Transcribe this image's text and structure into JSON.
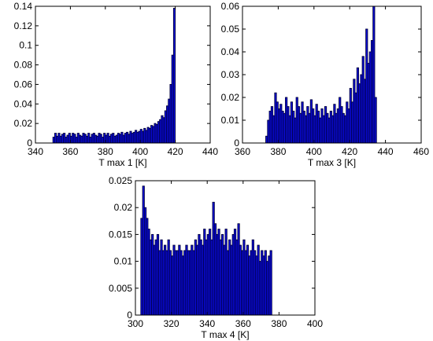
{
  "colors": {
    "bar_fill": "#0a0ae6",
    "bar_edge": "#00003a",
    "axis": "#000000",
    "background": "#ffffff"
  },
  "chart_data": [
    {
      "type": "bar",
      "title": "",
      "xlabel": "T max 1 [K]",
      "ylabel": "",
      "xlim": [
        340,
        440
      ],
      "ylim": [
        0,
        0.14
      ],
      "xticks": [
        340,
        360,
        380,
        400,
        420,
        440
      ],
      "yticks": [
        0,
        0.02,
        0.04,
        0.06,
        0.08,
        0.1,
        0.12,
        0.14
      ],
      "ytick_labels": [
        "0",
        "0.02",
        "0.04",
        "0.06",
        "0.08",
        "0.1",
        "0.12",
        "0.14"
      ],
      "bin_width": 1,
      "x": [
        350,
        351,
        352,
        353,
        354,
        355,
        356,
        357,
        358,
        359,
        360,
        361,
        362,
        363,
        364,
        365,
        366,
        367,
        368,
        369,
        370,
        371,
        372,
        373,
        374,
        375,
        376,
        377,
        378,
        379,
        380,
        381,
        382,
        383,
        384,
        385,
        386,
        387,
        388,
        389,
        390,
        391,
        392,
        393,
        394,
        395,
        396,
        397,
        398,
        399,
        400,
        401,
        402,
        403,
        404,
        405,
        406,
        407,
        408,
        409,
        410,
        411,
        412,
        413,
        414,
        415,
        416,
        417,
        418,
        419
      ],
      "values": [
        0.006,
        0.01,
        0.007,
        0.01,
        0.007,
        0.009,
        0.01,
        0.006,
        0.008,
        0.01,
        0.007,
        0.01,
        0.009,
        0.006,
        0.01,
        0.008,
        0.007,
        0.01,
        0.009,
        0.007,
        0.01,
        0.006,
        0.009,
        0.01,
        0.008,
        0.007,
        0.01,
        0.009,
        0.006,
        0.01,
        0.008,
        0.01,
        0.007,
        0.009,
        0.01,
        0.007,
        0.008,
        0.01,
        0.009,
        0.011,
        0.008,
        0.01,
        0.011,
        0.009,
        0.012,
        0.01,
        0.011,
        0.013,
        0.011,
        0.012,
        0.014,
        0.012,
        0.015,
        0.013,
        0.016,
        0.015,
        0.018,
        0.017,
        0.02,
        0.019,
        0.022,
        0.024,
        0.028,
        0.026,
        0.033,
        0.038,
        0.045,
        0.06,
        0.09,
        0.138
      ]
    },
    {
      "type": "bar",
      "title": "",
      "xlabel": "T max 3 [K]",
      "ylabel": "",
      "xlim": [
        360,
        460
      ],
      "ylim": [
        0,
        0.06
      ],
      "xticks": [
        360,
        380,
        400,
        420,
        440,
        460
      ],
      "yticks": [
        0,
        0.01,
        0.02,
        0.03,
        0.04,
        0.05,
        0.06
      ],
      "ytick_labels": [
        "0",
        "0.01",
        "0.02",
        "0.03",
        "0.04",
        "0.05",
        "0.06"
      ],
      "bin_width": 1,
      "x": [
        373,
        374,
        375,
        376,
        377,
        378,
        379,
        380,
        381,
        382,
        383,
        384,
        385,
        386,
        387,
        388,
        389,
        390,
        391,
        392,
        393,
        394,
        395,
        396,
        397,
        398,
        399,
        400,
        401,
        402,
        403,
        404,
        405,
        406,
        407,
        408,
        409,
        410,
        411,
        412,
        413,
        414,
        415,
        416,
        417,
        418,
        419,
        420,
        421,
        422,
        423,
        424,
        425,
        426,
        427,
        428,
        429,
        430,
        431,
        432,
        433,
        434
      ],
      "values": [
        0.003,
        0.01,
        0.014,
        0.016,
        0.012,
        0.022,
        0.018,
        0.015,
        0.017,
        0.014,
        0.013,
        0.02,
        0.016,
        0.012,
        0.018,
        0.014,
        0.011,
        0.02,
        0.016,
        0.013,
        0.018,
        0.014,
        0.012,
        0.016,
        0.013,
        0.019,
        0.015,
        0.012,
        0.017,
        0.014,
        0.011,
        0.015,
        0.012,
        0.016,
        0.013,
        0.011,
        0.014,
        0.012,
        0.017,
        0.013,
        0.015,
        0.02,
        0.016,
        0.013,
        0.012,
        0.018,
        0.015,
        0.024,
        0.018,
        0.028,
        0.022,
        0.033,
        0.026,
        0.03,
        0.038,
        0.028,
        0.05,
        0.035,
        0.04,
        0.045,
        0.06,
        0.02
      ]
    },
    {
      "type": "bar",
      "title": "",
      "xlabel": "T max 4 [K]",
      "ylabel": "",
      "xlim": [
        300,
        400
      ],
      "ylim": [
        0,
        0.025
      ],
      "xticks": [
        300,
        320,
        340,
        360,
        380,
        400
      ],
      "yticks": [
        0,
        0.005,
        0.01,
        0.015,
        0.02,
        0.025
      ],
      "ytick_labels": [
        "0",
        "0.005",
        "0.01",
        "0.015",
        "0.02",
        "0.025"
      ],
      "bin_width": 1,
      "x": [
        303,
        304,
        305,
        306,
        307,
        308,
        309,
        310,
        311,
        312,
        313,
        314,
        315,
        316,
        317,
        318,
        319,
        320,
        321,
        322,
        323,
        324,
        325,
        326,
        327,
        328,
        329,
        330,
        331,
        332,
        333,
        334,
        335,
        336,
        337,
        338,
        339,
        340,
        341,
        342,
        343,
        344,
        345,
        346,
        347,
        348,
        349,
        350,
        351,
        352,
        353,
        354,
        355,
        356,
        357,
        358,
        359,
        360,
        361,
        362,
        363,
        364,
        365,
        366,
        367,
        368,
        369,
        370,
        371,
        372,
        373,
        374,
        375
      ],
      "values": [
        0.018,
        0.024,
        0.02,
        0.018,
        0.016,
        0.014,
        0.015,
        0.013,
        0.014,
        0.015,
        0.012,
        0.014,
        0.012,
        0.013,
        0.012,
        0.014,
        0.012,
        0.011,
        0.013,
        0.012,
        0.012,
        0.013,
        0.012,
        0.011,
        0.012,
        0.013,
        0.012,
        0.012,
        0.013,
        0.012,
        0.014,
        0.013,
        0.015,
        0.014,
        0.013,
        0.016,
        0.014,
        0.015,
        0.016,
        0.014,
        0.021,
        0.017,
        0.015,
        0.016,
        0.014,
        0.015,
        0.013,
        0.016,
        0.012,
        0.014,
        0.013,
        0.015,
        0.016,
        0.014,
        0.017,
        0.013,
        0.012,
        0.014,
        0.012,
        0.013,
        0.011,
        0.012,
        0.014,
        0.012,
        0.011,
        0.013,
        0.01,
        0.012,
        0.011,
        0.012,
        0.01,
        0.011,
        0.012
      ]
    }
  ]
}
